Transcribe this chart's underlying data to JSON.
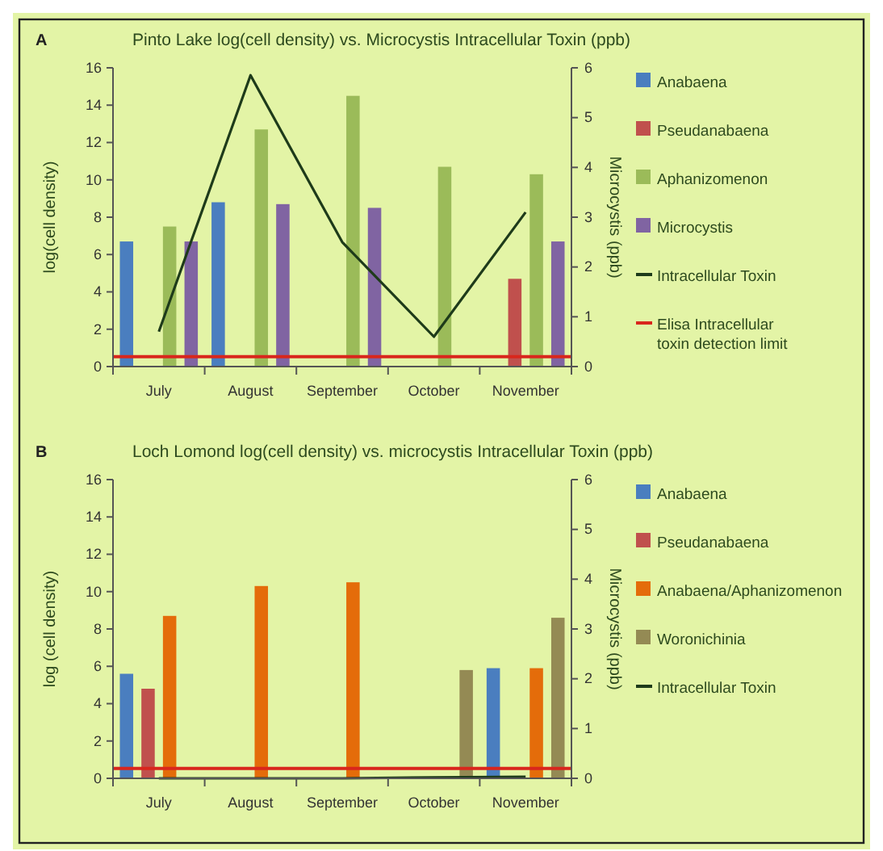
{
  "chart_data": [
    {
      "type": "bar",
      "title": "Pinto Lake log(cell density) vs. Microcystis Intracellular Toxin (ppb)",
      "annotations": [
        "A"
      ],
      "ylabel": "log(cell density)",
      "y2label": "Microcystis (ppb)",
      "categories": [
        "July",
        "August",
        "September",
        "October",
        "November"
      ],
      "ylim": [
        0,
        16
      ],
      "yticks": [
        0,
        2,
        4,
        6,
        8,
        10,
        12,
        14,
        16
      ],
      "y2lim": [
        0,
        6
      ],
      "y2ticks": [
        0,
        1,
        2,
        3,
        4,
        5,
        6
      ],
      "legend": "right",
      "series": [
        {
          "name": "Anabaena",
          "color": "#4a7ebf",
          "values": [
            6.7,
            8.8,
            null,
            null,
            null
          ]
        },
        {
          "name": "Pseudanabaena",
          "color": "#c0504d",
          "values": [
            null,
            null,
            null,
            null,
            4.7
          ]
        },
        {
          "name": "Aphanizomenon",
          "color": "#9bbb59",
          "values": [
            7.5,
            12.7,
            14.5,
            10.7,
            10.3
          ]
        },
        {
          "name": "Microcystis",
          "color": "#8064a2",
          "values": [
            6.7,
            8.7,
            8.5,
            null,
            6.7
          ]
        },
        {
          "name": "Intracellular Toxin",
          "type": "line",
          "axis": "y2",
          "color": "#1e3b1a",
          "values": [
            0.7,
            5.85,
            2.5,
            0.6,
            3.1
          ]
        }
      ],
      "ref_lines": [
        {
          "axis": "y2",
          "value": 0.2,
          "label": "Elisa Intracellular toxin detection limit",
          "color": "#d9261c"
        }
      ]
    },
    {
      "type": "bar",
      "title": "Loch Lomond log(cell density) vs. microcystis Intracellular Toxin (ppb)",
      "annotations": [
        "B"
      ],
      "ylabel": "log (cell density)",
      "y2label": "Microcystis (ppb)",
      "categories": [
        "July",
        "August",
        "September",
        "October",
        "November"
      ],
      "ylim": [
        0,
        16
      ],
      "yticks": [
        0,
        2,
        4,
        6,
        8,
        10,
        12,
        14,
        16
      ],
      "y2lim": [
        0,
        6
      ],
      "y2ticks": [
        0,
        1,
        2,
        3,
        4,
        5,
        6
      ],
      "legend": "right",
      "series": [
        {
          "name": "Anabaena",
          "color": "#4a7ebf",
          "values": [
            5.6,
            null,
            null,
            null,
            5.9
          ]
        },
        {
          "name": "Pseudanabaena",
          "color": "#c0504d",
          "values": [
            4.8,
            null,
            null,
            null,
            null
          ]
        },
        {
          "name": "Anabaena/Aphanizomenon",
          "color": "#e46c0a",
          "values": [
            8.7,
            10.3,
            10.5,
            null,
            5.9
          ]
        },
        {
          "name": "Woronichinia",
          "color": "#948a54",
          "values": [
            null,
            null,
            null,
            5.8,
            8.6
          ]
        },
        {
          "name": "Intracellular Toxin",
          "type": "line",
          "axis": "y2",
          "color": "#1e3b1a",
          "values": [
            0,
            0,
            0,
            0.02,
            0.03
          ]
        }
      ],
      "ref_lines": [
        {
          "axis": "y2",
          "value": 0.2,
          "color": "#d9261c"
        }
      ]
    }
  ]
}
